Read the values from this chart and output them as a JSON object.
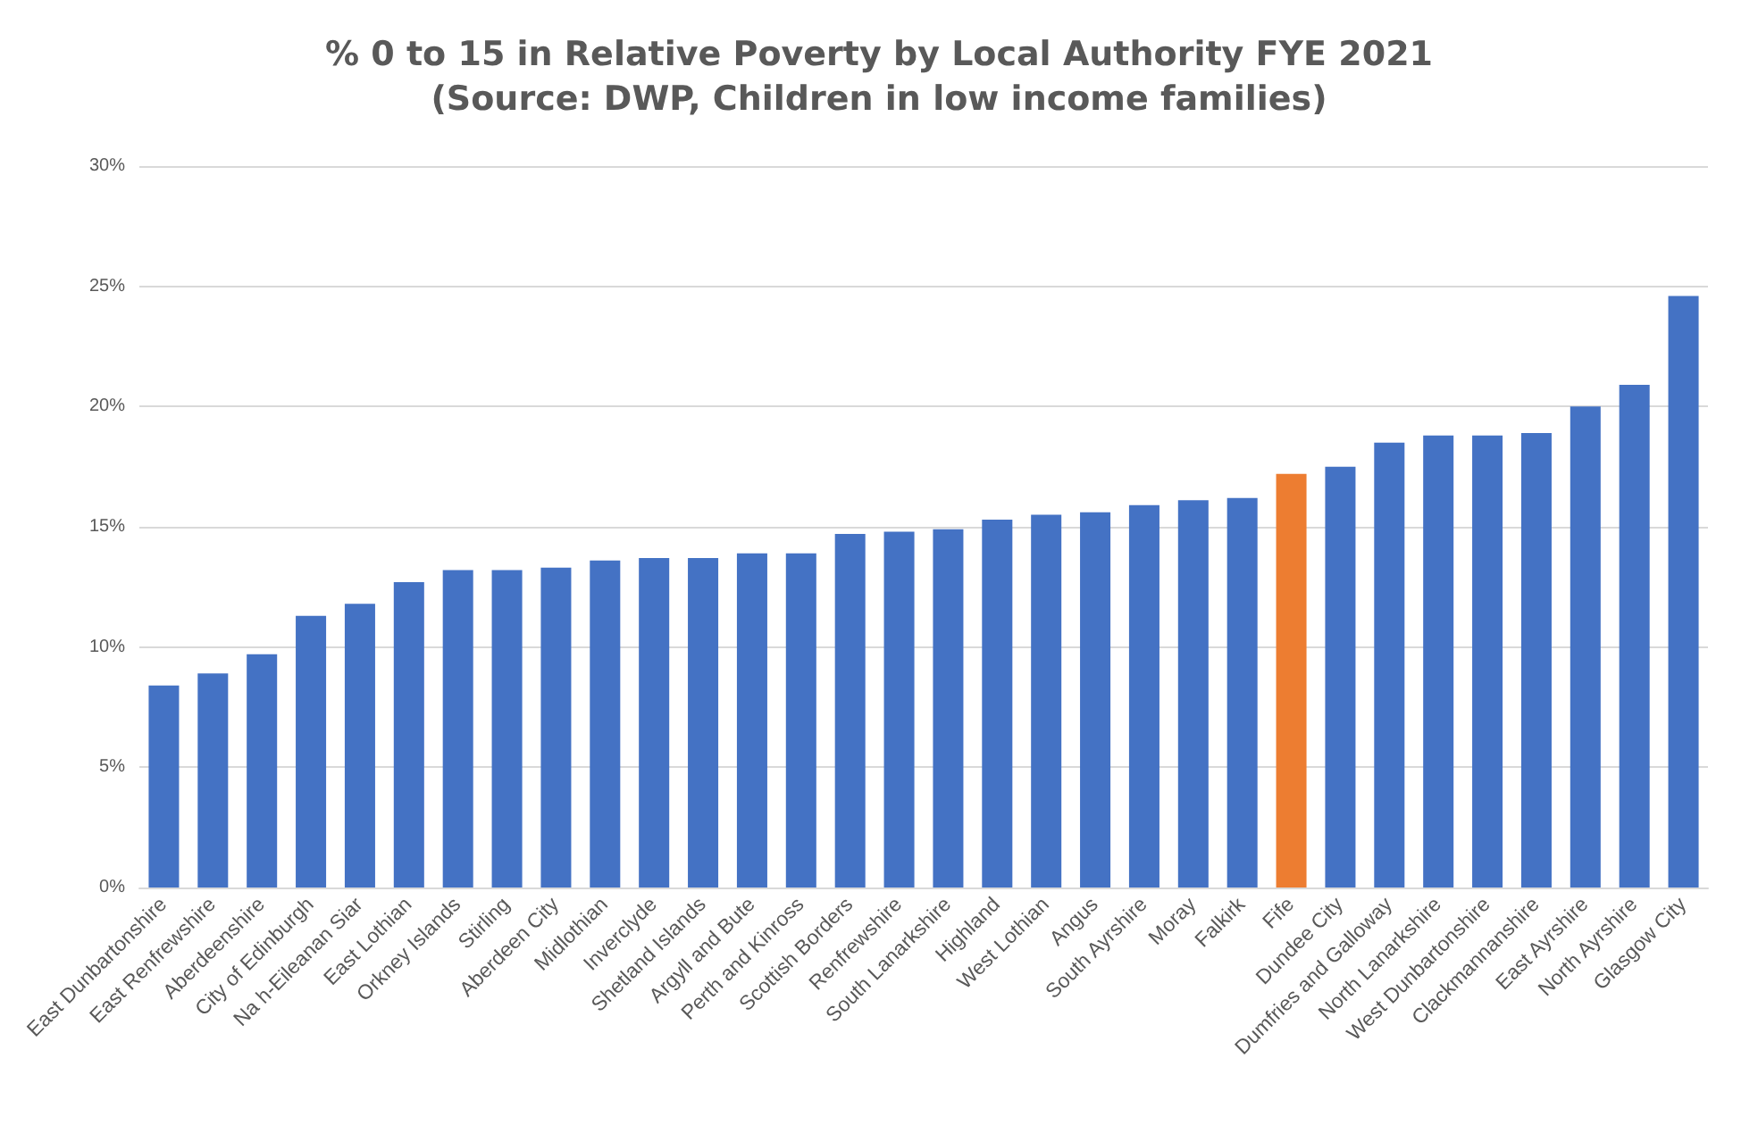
{
  "chart_data": {
    "type": "bar",
    "title": "% 0 to 15 in Relative Poverty by Local Authority FYE 2021",
    "subtitle": "(Source: DWP, Children in low income families)",
    "categories": [
      "East Dunbartonshire",
      "East Renfrewshire",
      "Aberdeenshire",
      "City of Edinburgh",
      "Na h-Eileanan Siar",
      "East Lothian",
      "Orkney Islands",
      "Stirling",
      "Aberdeen City",
      "Midlothian",
      "Inverclyde",
      "Shetland Islands",
      "Argyll and Bute",
      "Perth and Kinross",
      "Scottish Borders",
      "Renfrewshire",
      "South Lanarkshire",
      "Highland",
      "West Lothian",
      "Angus",
      "South Ayrshire",
      "Moray",
      "Falkirk",
      "Fife",
      "Dundee City",
      "Dumfries and Galloway",
      "North Lanarkshire",
      "West Dunbartonshire",
      "Clackmannanshire",
      "East Ayrshire",
      "North Ayrshire",
      "Glasgow City"
    ],
    "values": [
      8.4,
      8.9,
      9.7,
      11.3,
      11.8,
      12.7,
      13.2,
      13.2,
      13.3,
      13.6,
      13.7,
      13.7,
      13.9,
      13.9,
      14.7,
      14.8,
      14.9,
      15.3,
      15.5,
      15.6,
      15.9,
      16.1,
      16.2,
      17.2,
      17.5,
      18.5,
      18.8,
      18.8,
      18.9,
      20.0,
      20.9,
      24.6
    ],
    "colors": [
      "#4472c4",
      "#4472c4",
      "#4472c4",
      "#4472c4",
      "#4472c4",
      "#4472c4",
      "#4472c4",
      "#4472c4",
      "#4472c4",
      "#4472c4",
      "#4472c4",
      "#4472c4",
      "#4472c4",
      "#4472c4",
      "#4472c4",
      "#4472c4",
      "#4472c4",
      "#4472c4",
      "#4472c4",
      "#4472c4",
      "#4472c4",
      "#4472c4",
      "#4472c4",
      "#ed7d31",
      "#4472c4",
      "#4472c4",
      "#4472c4",
      "#4472c4",
      "#4472c4",
      "#4472c4",
      "#4472c4",
      "#4472c4"
    ],
    "ylim": [
      0,
      30
    ],
    "yticks": [
      {
        "value": 0,
        "label": "0%"
      },
      {
        "value": 5,
        "label": "5%"
      },
      {
        "value": 10,
        "label": "10%"
      },
      {
        "value": 15,
        "label": "15%"
      },
      {
        "value": 20,
        "label": "20%"
      },
      {
        "value": 25,
        "label": "25%"
      },
      {
        "value": 30,
        "label": "30%"
      }
    ],
    "grid": true
  }
}
